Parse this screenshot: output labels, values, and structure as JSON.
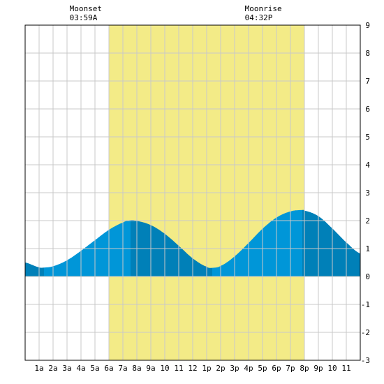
{
  "chart_data": {
    "type": "area",
    "x_hours": [
      0,
      1,
      1.35,
      2,
      3,
      4,
      5,
      6,
      7,
      7.55,
      8,
      9,
      10,
      11,
      12,
      13,
      13.4,
      14,
      15,
      16,
      17,
      18,
      19,
      19.85,
      20,
      21,
      22,
      23,
      24
    ],
    "values": [
      0.5,
      0.33,
      0.32,
      0.37,
      0.58,
      0.92,
      1.3,
      1.67,
      1.93,
      2.02,
      1.99,
      1.84,
      1.53,
      1.1,
      0.65,
      0.35,
      0.31,
      0.38,
      0.72,
      1.2,
      1.71,
      2.11,
      2.33,
      2.38,
      2.36,
      2.16,
      1.72,
      1.22,
      0.82
    ],
    "xlim": [
      0,
      24
    ],
    "ylim": [
      -3,
      9
    ],
    "x_tick_labels": [
      "1a",
      "2a",
      "3a",
      "4a",
      "5a",
      "6a",
      "7a",
      "8a",
      "9a",
      "10",
      "11",
      "12",
      "1p",
      "2p",
      "3p",
      "4p",
      "5p",
      "6p",
      "7p",
      "8p",
      "9p",
      "10",
      "11"
    ],
    "y_tick_labels": [
      "-3",
      "-2",
      "-1",
      "0",
      "1",
      "2",
      "3",
      "4",
      "5",
      "6",
      "7",
      "8",
      "9"
    ],
    "daylight": {
      "start_hour": 6.0,
      "end_hour": 20.0,
      "color": "#f3eb87"
    },
    "band_breaks_hours": [
      1.35,
      7.55,
      13.4,
      19.85
    ],
    "band_colors": [
      "#0080b8",
      "#0096d8"
    ],
    "grid": true,
    "annotations": [
      {
        "title": "Moonset",
        "time": "03:59A",
        "hour": 3.98
      },
      {
        "title": "Moonrise",
        "time": "04:32P",
        "hour": 16.53
      }
    ]
  }
}
